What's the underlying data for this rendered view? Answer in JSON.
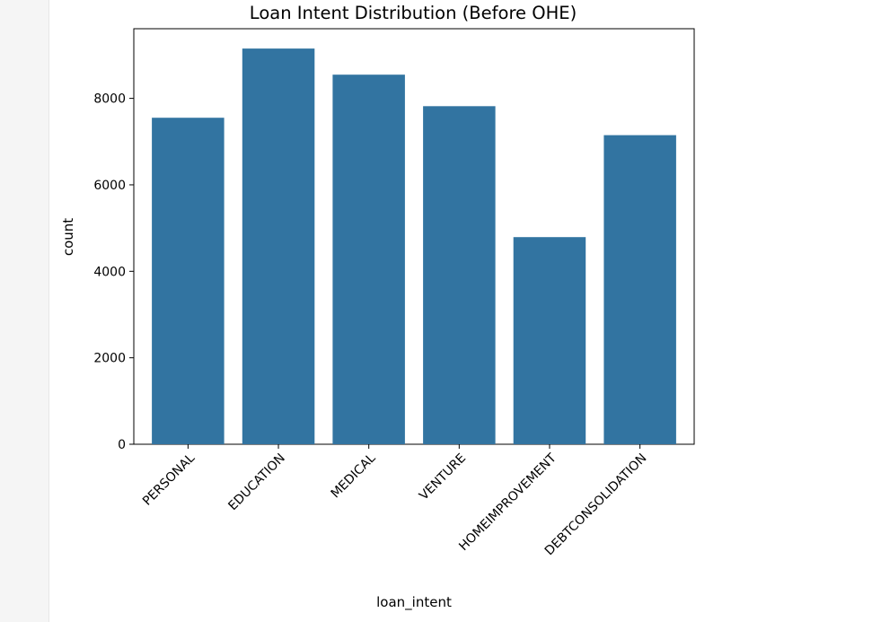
{
  "chart_data": {
    "type": "bar",
    "title": "Loan Intent Distribution (Before OHE)",
    "xlabel": "loan_intent",
    "ylabel": "count",
    "categories": [
      "PERSONAL",
      "EDUCATION",
      "MEDICAL",
      "VENTURE",
      "HOMEIMPROVEMENT",
      "DEBTCONSOLIDATION"
    ],
    "values": [
      7552,
      9153,
      8548,
      7819,
      4792,
      7149
    ],
    "ylim": [
      0,
      9611
    ],
    "yticks": [
      0,
      2000,
      4000,
      6000,
      8000
    ],
    "grid": false,
    "bar_color": "#3274a1"
  }
}
